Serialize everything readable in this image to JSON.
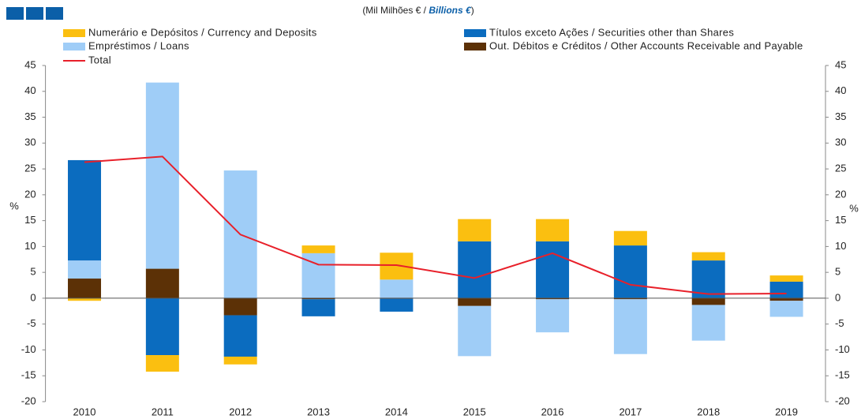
{
  "chart_data": {
    "type": "bar",
    "title": [
      "(Mil Milhões € / ",
      "Billions  €",
      ")"
    ],
    "ylabel": "%",
    "y2label": "%",
    "categories": [
      "2010",
      "2011",
      "2012",
      "2013",
      "2014",
      "2015",
      "2016",
      "2017",
      "2018",
      "2019"
    ],
    "series": [
      {
        "name": "Out. Débitos e Créditos / Other Accounts Receivable and Payable",
        "color": "#5c3106",
        "values": [
          3.8,
          5.7,
          -3.3,
          -0.2,
          -0.1,
          -1.5,
          -0.2,
          -0.2,
          -1.3,
          -0.5
        ]
      },
      {
        "name": "Empréstimos / Loans",
        "color": "#9fcdf7",
        "values": [
          3.5,
          36,
          24.7,
          8.7,
          3.6,
          -9.7,
          -6.4,
          -10.6,
          -6.9,
          -3.1
        ]
      },
      {
        "name": "Títulos exceto Ações / Securities other than Shares",
        "color": "#0b6cbf",
        "values": [
          19.4,
          -11,
          -8,
          -3.3,
          -2.5,
          11,
          11,
          10.2,
          7.3,
          3.2
        ]
      },
      {
        "name": "Numerário e Depósitos / Currency and Deposits",
        "color": "#fbbf10",
        "values": [
          -0.5,
          -3.2,
          -1.5,
          1.5,
          5.2,
          4.3,
          4.3,
          2.8,
          1.6,
          1.2
        ]
      },
      {
        "name": "Total",
        "type": "line",
        "color": "#e8202a",
        "values": [
          26.3,
          27.4,
          12.3,
          6.5,
          6.4,
          3.9,
          8.7,
          2.6,
          0.8,
          0.9
        ]
      }
    ],
    "ylim": [
      -20,
      45
    ],
    "yticks": [
      -20,
      -15,
      -10,
      -5,
      0,
      5,
      10,
      15,
      20,
      25,
      30,
      35,
      40,
      45
    ],
    "y2lim": [
      -20,
      45
    ],
    "y2ticks": [
      -20,
      -15,
      -10,
      -5,
      0,
      5,
      10,
      15,
      20,
      25,
      30,
      35,
      40,
      45
    ],
    "legend": "top"
  }
}
